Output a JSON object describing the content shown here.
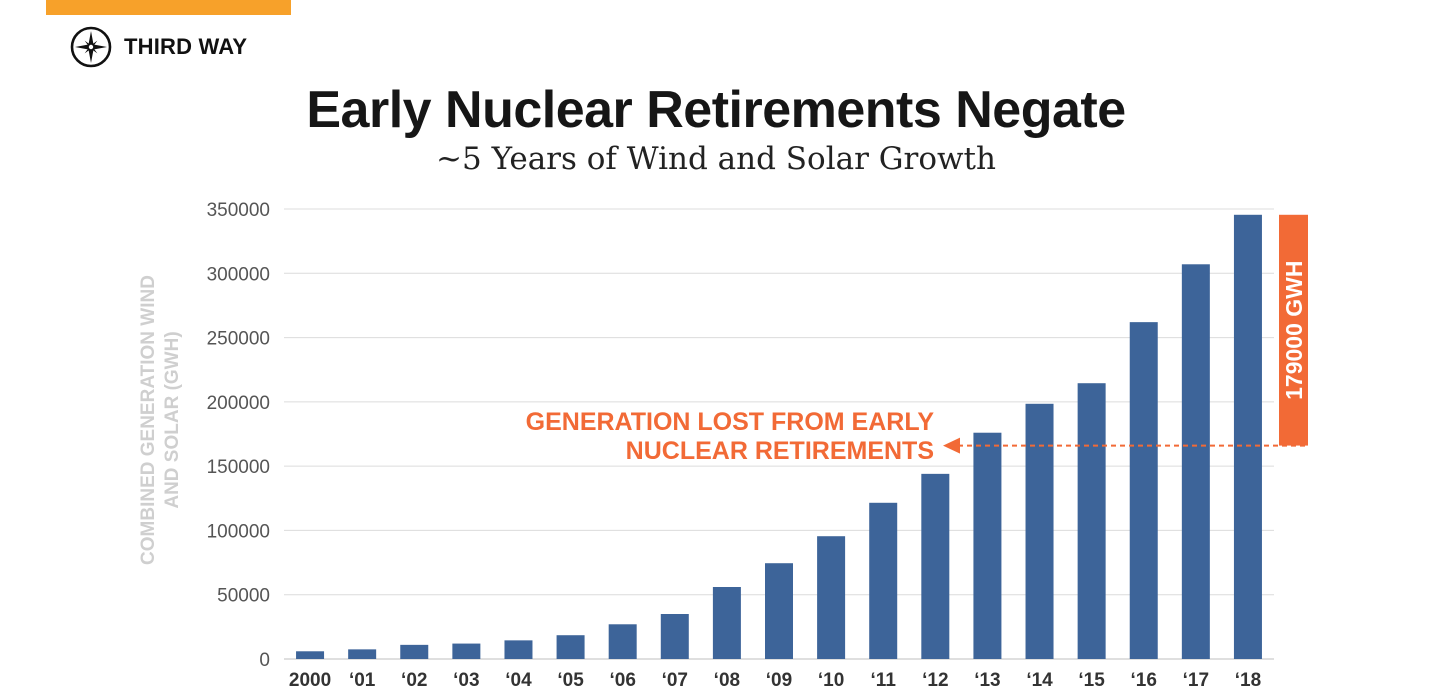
{
  "brand": {
    "name": "THIRD WAY",
    "accent_color": "#f7a12a"
  },
  "title": "Early Nuclear Retirements Negate",
  "subtitle": "~5 Years of Wind and Solar Growth",
  "chart_data": {
    "type": "bar",
    "categories": [
      "2000",
      "‘01",
      "‘02",
      "‘03",
      "‘04",
      "‘05",
      "‘06",
      "‘07",
      "‘08",
      "‘09",
      "‘10",
      "‘11",
      "‘12",
      "‘13",
      "‘14",
      "‘15",
      "‘16",
      "‘17",
      "‘18"
    ],
    "values": [
      6000,
      7500,
      11000,
      12000,
      14500,
      18500,
      27000,
      35000,
      56000,
      74500,
      95500,
      121500,
      144000,
      176000,
      198500,
      214500,
      262000,
      307000,
      345500
    ],
    "ylim": [
      0,
      350000
    ],
    "yticks": [
      0,
      50000,
      100000,
      150000,
      200000,
      250000,
      300000,
      350000
    ],
    "ylabel_lines": [
      "COMBINED GENERATION WIND",
      "AND SOLAR (GWH)"
    ],
    "xlabel": "",
    "grid": true,
    "bar_color": "#3d6499",
    "annotation": {
      "lines": [
        "GENERATION LOST FROM EARLY",
        "NUCLEAR RETIREMENTS"
      ],
      "level": 166000,
      "color": "#f26a36"
    },
    "range_marker": {
      "label": "179000 GWH",
      "from": 166000,
      "to": 345500,
      "color": "#f26a36"
    }
  }
}
